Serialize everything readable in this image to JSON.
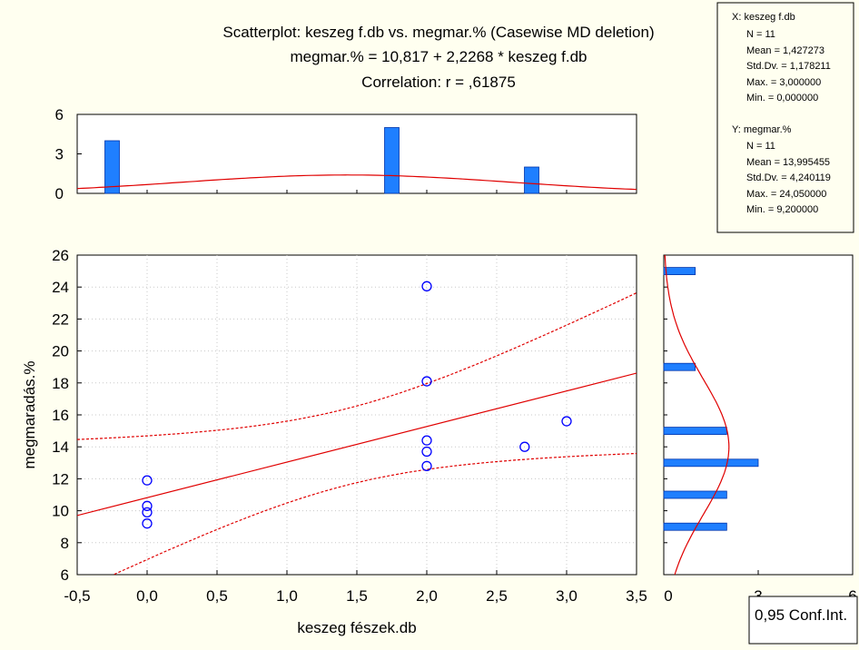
{
  "titles": {
    "line1": "Scatterplot: keszeg f.db vs. megmar.% (Casewise MD deletion)",
    "line2": "megmar.% = 10,817 + 2,2268 * keszeg f.db",
    "line3": "Correlation: r = ,61875"
  },
  "stats_box": {
    "x_header": "X:  keszeg f.db",
    "x_lines": [
      "N = 11",
      "Mean = 1,427273",
      "Std.Dv. = 1,178211",
      "Max. = 3,000000",
      "Min. = 0,000000"
    ],
    "y_header": "Y:  megmar.%",
    "y_lines": [
      "N = 11",
      "Mean = 13,995455",
      "Std.Dv. = 4,240119",
      "Max. = 24,050000",
      "Min. = 9,200000"
    ]
  },
  "legend": {
    "label": "0,95 Conf.Int."
  },
  "colors": {
    "background": "#fffff0",
    "points": "#0000ff",
    "bars": "#1f7fff",
    "lines": "#e00000"
  },
  "chart_data": [
    {
      "type": "scatter",
      "xlabel": "keszeg fészek.db",
      "ylabel": "megmaradás.%",
      "xlim": [
        -0.5,
        3.5
      ],
      "ylim": [
        6,
        26
      ],
      "xticks": [
        "-0,5",
        "0,0",
        "0,5",
        "1,0",
        "1,5",
        "2,0",
        "2,5",
        "3,0",
        "3,5"
      ],
      "xtick_values": [
        -0.5,
        0,
        0.5,
        1.0,
        1.5,
        2.0,
        2.5,
        3.0,
        3.5
      ],
      "yticks": [
        "6",
        "8",
        "10",
        "12",
        "14",
        "16",
        "18",
        "20",
        "22",
        "24",
        "26"
      ],
      "ytick_values": [
        6,
        8,
        10,
        12,
        14,
        16,
        18,
        20,
        22,
        24,
        26
      ],
      "grid": true,
      "points": [
        {
          "x": 0,
          "y": 11.9
        },
        {
          "x": 0,
          "y": 10.3
        },
        {
          "x": 0,
          "y": 9.9
        },
        {
          "x": 0,
          "y": 9.2
        },
        {
          "x": 2,
          "y": 24.05
        },
        {
          "x": 2,
          "y": 18.1
        },
        {
          "x": 2,
          "y": 14.4
        },
        {
          "x": 2,
          "y": 13.7
        },
        {
          "x": 2,
          "y": 12.8
        },
        {
          "x": 2.7,
          "y": 14.0
        },
        {
          "x": 3,
          "y": 15.6
        }
      ],
      "regression": {
        "intercept": 10.817,
        "slope": 2.2268
      },
      "confidence_level": 0.95
    },
    {
      "type": "bar",
      "orientation": "vertical",
      "title": "",
      "bin_centers": [
        -0.25,
        1.75,
        2.75
      ],
      "counts": [
        4,
        5,
        2
      ],
      "ylim": [
        0,
        6
      ],
      "yticks": [
        "0",
        "3",
        "6"
      ],
      "ytick_values": [
        0,
        3,
        6
      ],
      "normal_curve": {
        "mean": 1.427273,
        "sd": 1.178211
      }
    },
    {
      "type": "bar",
      "orientation": "horizontal",
      "bin_centers": [
        25,
        19,
        15,
        13,
        11,
        9
      ],
      "counts": [
        1,
        1,
        2,
        3,
        2,
        2
      ],
      "xlim": [
        0,
        6
      ],
      "xticks": [
        "0",
        "3",
        "6"
      ],
      "xtick_values": [
        0,
        3,
        6
      ],
      "normal_curve": {
        "mean": 13.995455,
        "sd": 4.240119
      }
    }
  ]
}
